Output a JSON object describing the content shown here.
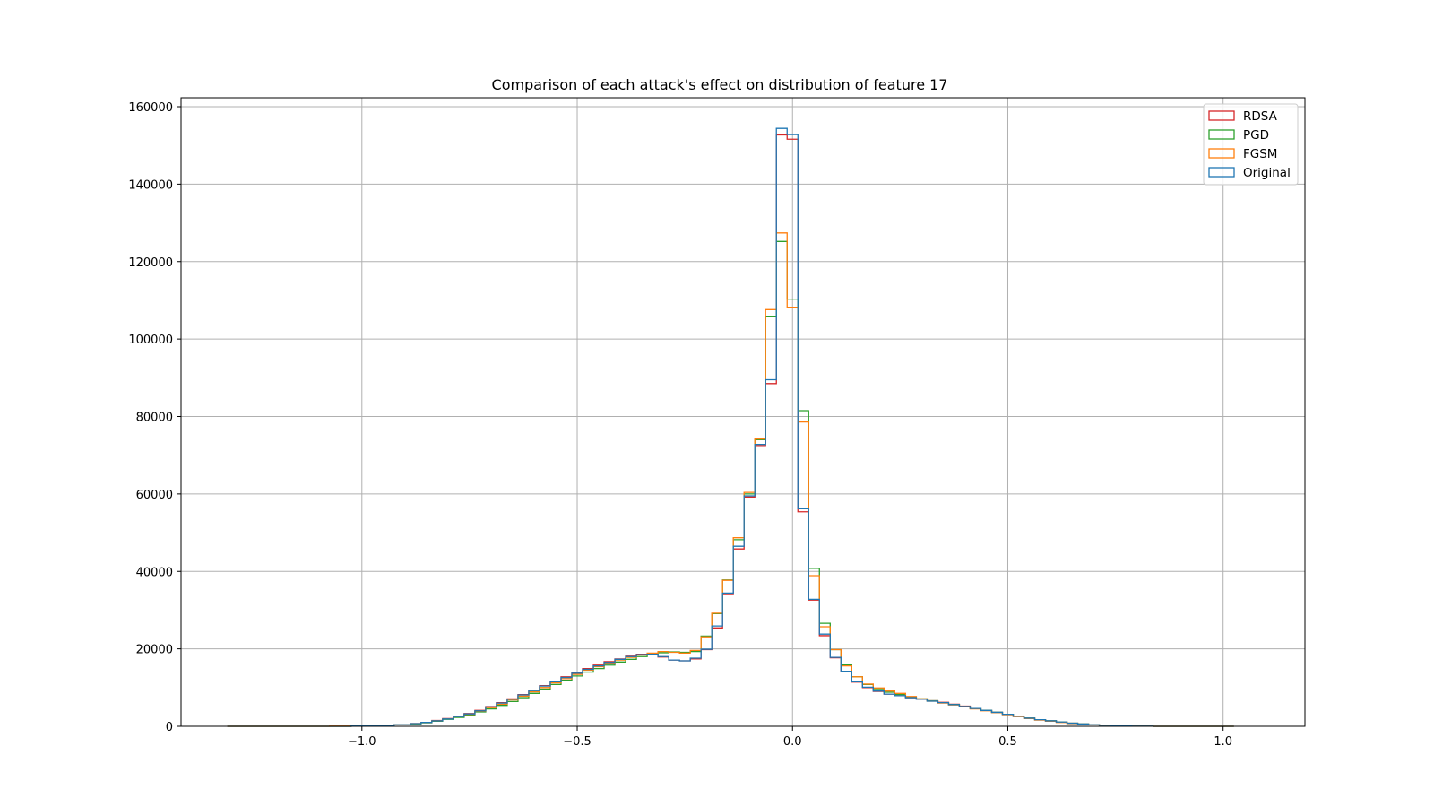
{
  "chart_data": {
    "type": "histogram-step",
    "title": "Comparison of each attack's effect on distribution of feature 17",
    "xlabel": "",
    "ylabel": "",
    "xlim": [
      -1.42,
      1.19
    ],
    "ylim": [
      0,
      160000
    ],
    "xticks": [
      -1.0,
      -0.5,
      0.0,
      0.5,
      1.0
    ],
    "xtick_labels": [
      "−1.0",
      "−0.5",
      "0.0",
      "0.5",
      "1.0"
    ],
    "yticks": [
      0,
      20000,
      40000,
      60000,
      80000,
      100000,
      120000,
      140000,
      160000
    ],
    "ytick_labels": [
      "0",
      "20000",
      "40000",
      "60000",
      "80000",
      "100000",
      "120000",
      "140000",
      "160000"
    ],
    "grid": true,
    "legend_position": "top-right",
    "bin_width": 0.025,
    "series": [
      {
        "name": "RDSA",
        "color": "#d62728",
        "x": [
          -1.3,
          -1.25,
          -1.2,
          -1.15,
          -1.1,
          -1.05,
          -1.0,
          -0.95,
          -0.9,
          -0.875,
          -0.85,
          -0.825,
          -0.8,
          -0.775,
          -0.75,
          -0.725,
          -0.7,
          -0.675,
          -0.65,
          -0.625,
          -0.6,
          -0.575,
          -0.55,
          -0.525,
          -0.5,
          -0.475,
          -0.45,
          -0.425,
          -0.4,
          -0.375,
          -0.35,
          -0.325,
          -0.3,
          -0.275,
          -0.25,
          -0.225,
          -0.2,
          -0.175,
          -0.15,
          -0.125,
          -0.1,
          -0.075,
          -0.05,
          -0.025,
          0.0,
          0.025,
          0.05,
          0.075,
          0.1,
          0.125,
          0.15,
          0.175,
          0.2,
          0.225,
          0.25,
          0.275,
          0.3,
          0.325,
          0.35,
          0.375,
          0.4,
          0.425,
          0.45,
          0.475,
          0.5,
          0.525,
          0.55,
          0.575,
          0.6,
          0.625,
          0.65,
          0.675,
          0.7,
          0.725,
          0.75,
          0.775,
          0.8,
          0.825,
          0.85,
          0.9,
          0.95,
          1.0,
          1.05
        ],
        "values": [
          0,
          0,
          0,
          0,
          0,
          0,
          100,
          200,
          400,
          700,
          1000,
          1500,
          2000,
          2600,
          3300,
          4100,
          5100,
          6100,
          7100,
          8200,
          9300,
          10500,
          11600,
          12800,
          13800,
          14900,
          15800,
          16700,
          17400,
          18100,
          18600,
          18500,
          17900,
          17100,
          16900,
          17400,
          19800,
          25400,
          34000,
          45800,
          59200,
          72500,
          88500,
          152700,
          151600,
          55400,
          32600,
          23400,
          17700,
          14100,
          11400,
          10000,
          9000,
          8300,
          7900,
          7400,
          7000,
          6600,
          6200,
          5700,
          5200,
          4600,
          4100,
          3600,
          3100,
          2600,
          2100,
          1700,
          1400,
          1100,
          800,
          600,
          400,
          300,
          200,
          100,
          60,
          40,
          0,
          0,
          0,
          0
        ]
      },
      {
        "name": "PGD",
        "color": "#2ca02c",
        "x": [
          -1.3,
          -1.25,
          -1.2,
          -1.15,
          -1.1,
          -1.05,
          -1.0,
          -0.95,
          -0.9,
          -0.875,
          -0.85,
          -0.825,
          -0.8,
          -0.775,
          -0.75,
          -0.725,
          -0.7,
          -0.675,
          -0.65,
          -0.625,
          -0.6,
          -0.575,
          -0.55,
          -0.525,
          -0.5,
          -0.475,
          -0.45,
          -0.425,
          -0.4,
          -0.375,
          -0.35,
          -0.325,
          -0.3,
          -0.275,
          -0.25,
          -0.225,
          -0.2,
          -0.175,
          -0.15,
          -0.125,
          -0.1,
          -0.075,
          -0.05,
          -0.025,
          0.0,
          0.025,
          0.05,
          0.075,
          0.1,
          0.125,
          0.15,
          0.175,
          0.2,
          0.225,
          0.25,
          0.275,
          0.3,
          0.325,
          0.35,
          0.375,
          0.4,
          0.425,
          0.45,
          0.475,
          0.5,
          0.525,
          0.55,
          0.575,
          0.6,
          0.625,
          0.65,
          0.675,
          0.7,
          0.725,
          0.75,
          0.775,
          0.8,
          0.825,
          0.85,
          0.9,
          0.95,
          1.0,
          1.05
        ],
        "values": [
          0,
          0,
          0,
          0,
          0,
          0,
          100,
          200,
          400,
          600,
          900,
          1300,
          1800,
          2300,
          2900,
          3700,
          4500,
          5400,
          6400,
          7400,
          8500,
          9600,
          10800,
          11900,
          13000,
          14000,
          14900,
          15800,
          16600,
          17300,
          18000,
          18600,
          19000,
          19200,
          19100,
          19300,
          23300,
          29100,
          37800,
          48200,
          60000,
          74000,
          105900,
          125200,
          110300,
          81500,
          40800,
          26600,
          19800,
          15900,
          12800,
          10800,
          9700,
          8800,
          8200,
          7600,
          7100,
          6600,
          6100,
          5600,
          5100,
          4600,
          4100,
          3600,
          3100,
          2600,
          2100,
          1700,
          1400,
          1100,
          800,
          600,
          400,
          300,
          200,
          100,
          60,
          40,
          0,
          0,
          0,
          0
        ]
      },
      {
        "name": "FGSM",
        "color": "#ff7f0e",
        "x": [
          -1.3,
          -1.25,
          -1.2,
          -1.15,
          -1.1,
          -1.05,
          -1.0,
          -0.95,
          -0.9,
          -0.875,
          -0.85,
          -0.825,
          -0.8,
          -0.775,
          -0.75,
          -0.725,
          -0.7,
          -0.675,
          -0.65,
          -0.625,
          -0.6,
          -0.575,
          -0.55,
          -0.525,
          -0.5,
          -0.475,
          -0.45,
          -0.425,
          -0.4,
          -0.375,
          -0.35,
          -0.325,
          -0.3,
          -0.275,
          -0.25,
          -0.225,
          -0.2,
          -0.175,
          -0.15,
          -0.125,
          -0.1,
          -0.075,
          -0.05,
          -0.025,
          0.0,
          0.025,
          0.05,
          0.075,
          0.1,
          0.125,
          0.15,
          0.175,
          0.2,
          0.225,
          0.25,
          0.275,
          0.3,
          0.325,
          0.35,
          0.375,
          0.4,
          0.425,
          0.45,
          0.475,
          0.5,
          0.525,
          0.55,
          0.575,
          0.6,
          0.625,
          0.65,
          0.675,
          0.7,
          0.725,
          0.75,
          0.775,
          0.8,
          0.825,
          0.85,
          0.9,
          0.95,
          1.0,
          1.05
        ],
        "values": [
          0,
          0,
          0,
          0,
          0,
          200,
          200,
          300,
          400,
          700,
          1000,
          1400,
          1900,
          2500,
          3100,
          3900,
          4800,
          5700,
          6800,
          7800,
          8900,
          10000,
          11200,
          12300,
          13400,
          14500,
          15400,
          16300,
          17100,
          17800,
          18400,
          18900,
          19300,
          19100,
          18900,
          19600,
          23100,
          29200,
          37700,
          48700,
          60400,
          74200,
          107600,
          127400,
          108200,
          78600,
          38900,
          25700,
          19800,
          15600,
          12800,
          10900,
          9900,
          9100,
          8500,
          7700,
          7100,
          6500,
          6000,
          5500,
          5000,
          4500,
          4000,
          3500,
          3000,
          2500,
          2000,
          1600,
          1300,
          1000,
          700,
          500,
          400,
          300,
          200,
          100,
          60,
          40,
          0,
          0,
          0,
          0
        ]
      },
      {
        "name": "Original",
        "color": "#1f77b4",
        "x": [
          -1.3,
          -1.25,
          -1.2,
          -1.15,
          -1.1,
          -1.05,
          -1.0,
          -0.95,
          -0.9,
          -0.875,
          -0.85,
          -0.825,
          -0.8,
          -0.775,
          -0.75,
          -0.725,
          -0.7,
          -0.675,
          -0.65,
          -0.625,
          -0.6,
          -0.575,
          -0.55,
          -0.525,
          -0.5,
          -0.475,
          -0.45,
          -0.425,
          -0.4,
          -0.375,
          -0.35,
          -0.325,
          -0.3,
          -0.275,
          -0.25,
          -0.225,
          -0.2,
          -0.175,
          -0.15,
          -0.125,
          -0.1,
          -0.075,
          -0.05,
          -0.025,
          0.0,
          0.025,
          0.05,
          0.075,
          0.1,
          0.125,
          0.15,
          0.175,
          0.2,
          0.225,
          0.25,
          0.275,
          0.3,
          0.325,
          0.35,
          0.375,
          0.4,
          0.425,
          0.45,
          0.475,
          0.5,
          0.525,
          0.55,
          0.575,
          0.6,
          0.625,
          0.65,
          0.675,
          0.7,
          0.725,
          0.75,
          0.775,
          0.8,
          0.825,
          0.85,
          0.9,
          0.95,
          1.0,
          1.05
        ],
        "values": [
          0,
          0,
          0,
          0,
          0,
          0,
          100,
          200,
          400,
          700,
          1000,
          1400,
          1900,
          2500,
          3200,
          4000,
          5000,
          6000,
          7000,
          8100,
          9200,
          10400,
          11500,
          12600,
          13700,
          14700,
          15600,
          16500,
          17300,
          18000,
          18500,
          18600,
          18000,
          17100,
          16900,
          17600,
          19900,
          25900,
          34400,
          46500,
          59500,
          72800,
          89500,
          154400,
          152800,
          56200,
          32800,
          23800,
          17800,
          14200,
          11500,
          10100,
          9100,
          8300,
          7900,
          7400,
          7000,
          6500,
          6100,
          5600,
          5100,
          4600,
          4100,
          3600,
          3100,
          2600,
          2100,
          1700,
          1400,
          1100,
          800,
          600,
          400,
          300,
          200,
          100,
          60,
          40,
          0,
          0,
          0,
          0
        ]
      }
    ]
  }
}
